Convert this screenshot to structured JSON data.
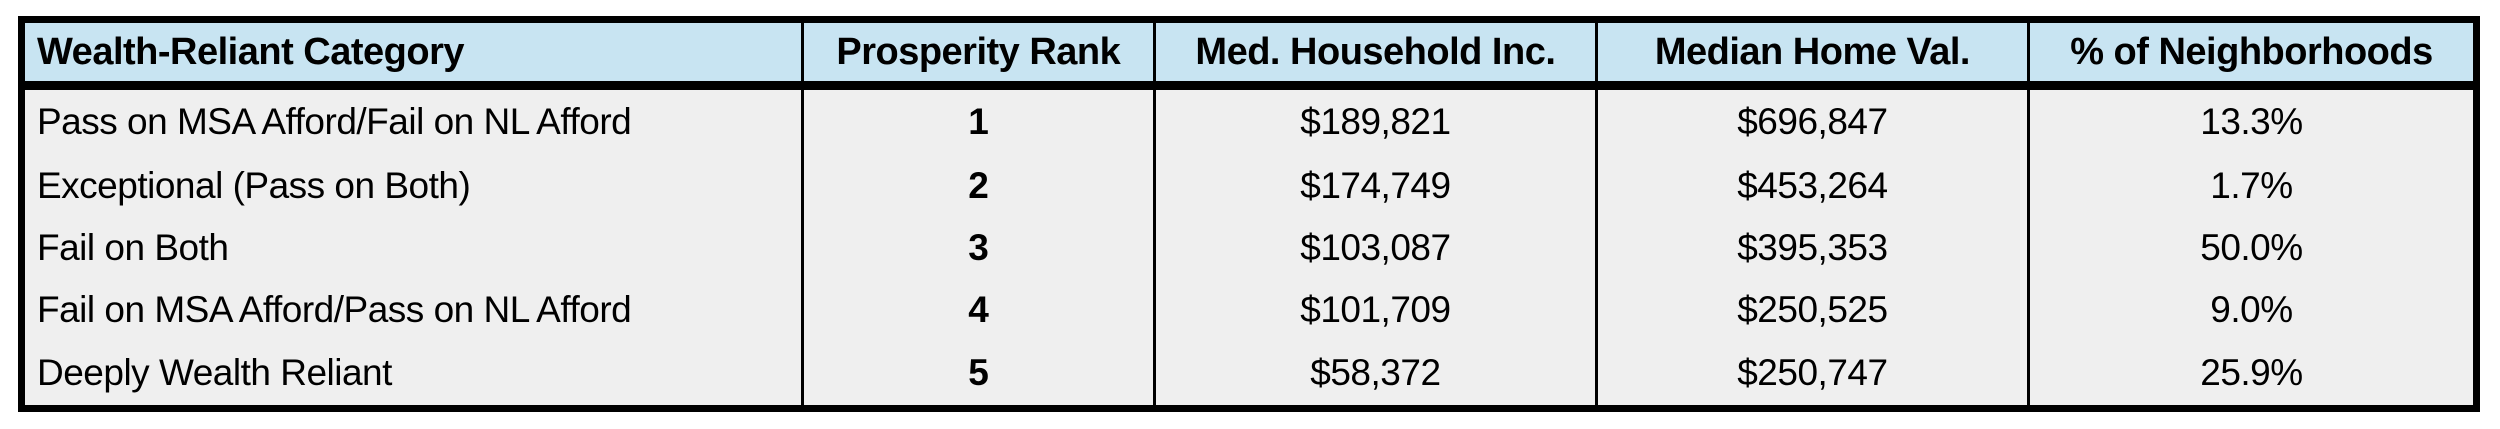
{
  "chart_data": {
    "type": "table",
    "columns": [
      "Wealth-Reliant Category",
      "Prosperity Rank",
      "Med. Household Inc.",
      "Median Home Val.",
      "% of Neighborhoods"
    ],
    "rows": [
      [
        "Pass on MSA Afford/Fail on NL Afford",
        "1",
        "$189,821",
        "$696,847",
        "13.3%"
      ],
      [
        "Exceptional (Pass on Both)",
        "2",
        "$174,749",
        "$453,264",
        "1.7%"
      ],
      [
        "Fail on Both",
        "3",
        "$103,087",
        "$395,353",
        "50.0%"
      ],
      [
        "Fail on MSA Afford/Pass on NL Afford",
        "4",
        "$101,709",
        "$250,525",
        "9.0%"
      ],
      [
        "Deeply Wealth Reliant",
        "5",
        "$58,372",
        "$250,747",
        "25.9%"
      ]
    ],
    "layout_hints": {
      "header_align": [
        "left",
        "center",
        "center",
        "center",
        "center"
      ],
      "body_align": [
        "left",
        "center",
        "center",
        "center",
        "center"
      ],
      "bold_columns": [
        "Prosperity Rank"
      ],
      "grid": "vertical-lines-only, thick outer border, thick rule under header"
    }
  },
  "colors": {
    "header_bg": "#C8E4F2",
    "row_bg": "#EFEFEF",
    "border": "#000000",
    "text": "#000000",
    "page_bg": "#FFFFFF"
  }
}
